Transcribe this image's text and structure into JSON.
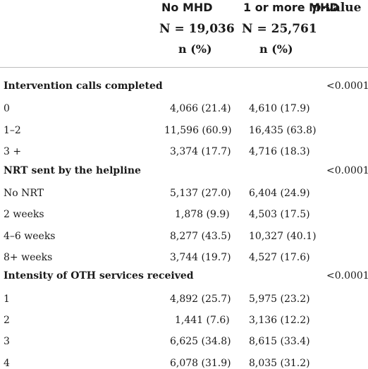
{
  "header": {
    "col1_title": "No MHD",
    "col2_title": "1 or more MHD",
    "col3_title": "p-value",
    "col3_title_p": "p",
    "col3_title_rest": "-value",
    "col1_n": "N = 19,036",
    "col2_n": "N = 25,761",
    "col1_unit": "n (%)",
    "col2_unit": "n (%)"
  },
  "sections": [
    {
      "title": "Intervention calls completed",
      "pvalue": "<0.0001",
      "rows": [
        {
          "label": "0",
          "no_mhd": "4,066 (21.4)",
          "mhd": "4,610 (17.9)"
        },
        {
          "label": "1–2",
          "no_mhd": "11,596 (60.9)",
          "mhd": "16,435 (63.8)"
        },
        {
          "label": "3 +",
          "no_mhd": "3,374 (17.7)",
          "mhd": "4,716 (18.3)"
        }
      ]
    },
    {
      "title": "NRT sent by the helpline",
      "pvalue": "<0.0001",
      "rows": [
        {
          "label": "No NRT",
          "no_mhd": "5,137 (27.0)",
          "mhd": "6,404 (24.9)"
        },
        {
          "label": "2 weeks",
          "no_mhd": "1,878 (9.9)",
          "mhd": "4,503 (17.5)"
        },
        {
          "label": "4–6 weeks",
          "no_mhd": "8,277 (43.5)",
          "mhd": "10,327 (40.1)"
        },
        {
          "label": "8+ weeks",
          "no_mhd": "3,744 (19.7)",
          "mhd": "4,527 (17.6)"
        }
      ]
    },
    {
      "title": "Intensity of OTH services received",
      "pvalue": "<0.0001",
      "rows": [
        {
          "label": "1",
          "no_mhd": "4,892 (25.7)",
          "mhd": "5,975 (23.2)"
        },
        {
          "label": "2",
          "no_mhd": "1,441 (7.6)",
          "mhd": "3,136 (12.2)"
        },
        {
          "label": "3",
          "no_mhd": "6,625 (34.8)",
          "mhd": "8,615 (33.4)"
        },
        {
          "label": "4",
          "no_mhd": "6,078 (31.9)",
          "mhd": "8,035 (31.2)"
        }
      ]
    }
  ]
}
